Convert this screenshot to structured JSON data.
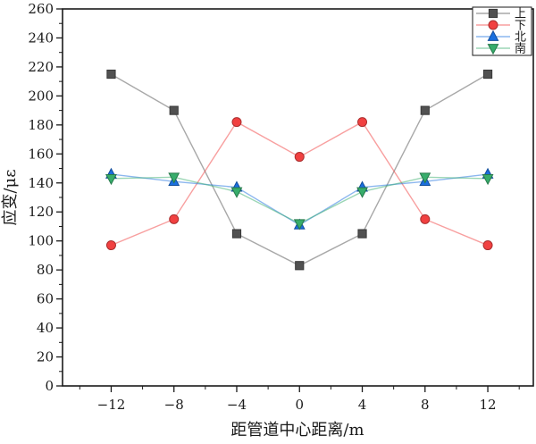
{
  "chart_data": {
    "type": "line",
    "title": "",
    "xlabel": "距管道中心距离/m",
    "ylabel": "应变/με",
    "x": [
      -12,
      -8,
      -4,
      0,
      4,
      8,
      12
    ],
    "series": [
      {
        "key": "up",
        "name": "上",
        "marker": "square",
        "color": "#515151",
        "values": [
          215,
          190,
          105,
          83,
          105,
          190,
          215
        ]
      },
      {
        "key": "down",
        "name": "下",
        "marker": "circle",
        "color": "#F14040",
        "values": [
          97,
          115,
          182,
          158,
          182,
          115,
          97
        ]
      },
      {
        "key": "north",
        "name": "北",
        "marker": "triangle-up",
        "color": "#1A6FDF",
        "values": [
          146,
          141,
          137,
          111,
          137,
          141,
          146
        ]
      },
      {
        "key": "south",
        "name": "南",
        "marker": "triangle-down",
        "color": "#37AD6B",
        "values": [
          143,
          144,
          134,
          112,
          134,
          144,
          143
        ]
      }
    ],
    "xlim": [
      -15.1,
      14.9
    ],
    "ylim": [
      0,
      260
    ],
    "x_major_ticks": [
      -12,
      -8,
      -4,
      0,
      4,
      8,
      12
    ],
    "x_minor_step": 2,
    "y_major_step": 20,
    "y_minor_step": 10,
    "grid": false,
    "legend_position": "top-right",
    "axis_color": "#1a1a1a",
    "line_opacity": 0.5
  }
}
